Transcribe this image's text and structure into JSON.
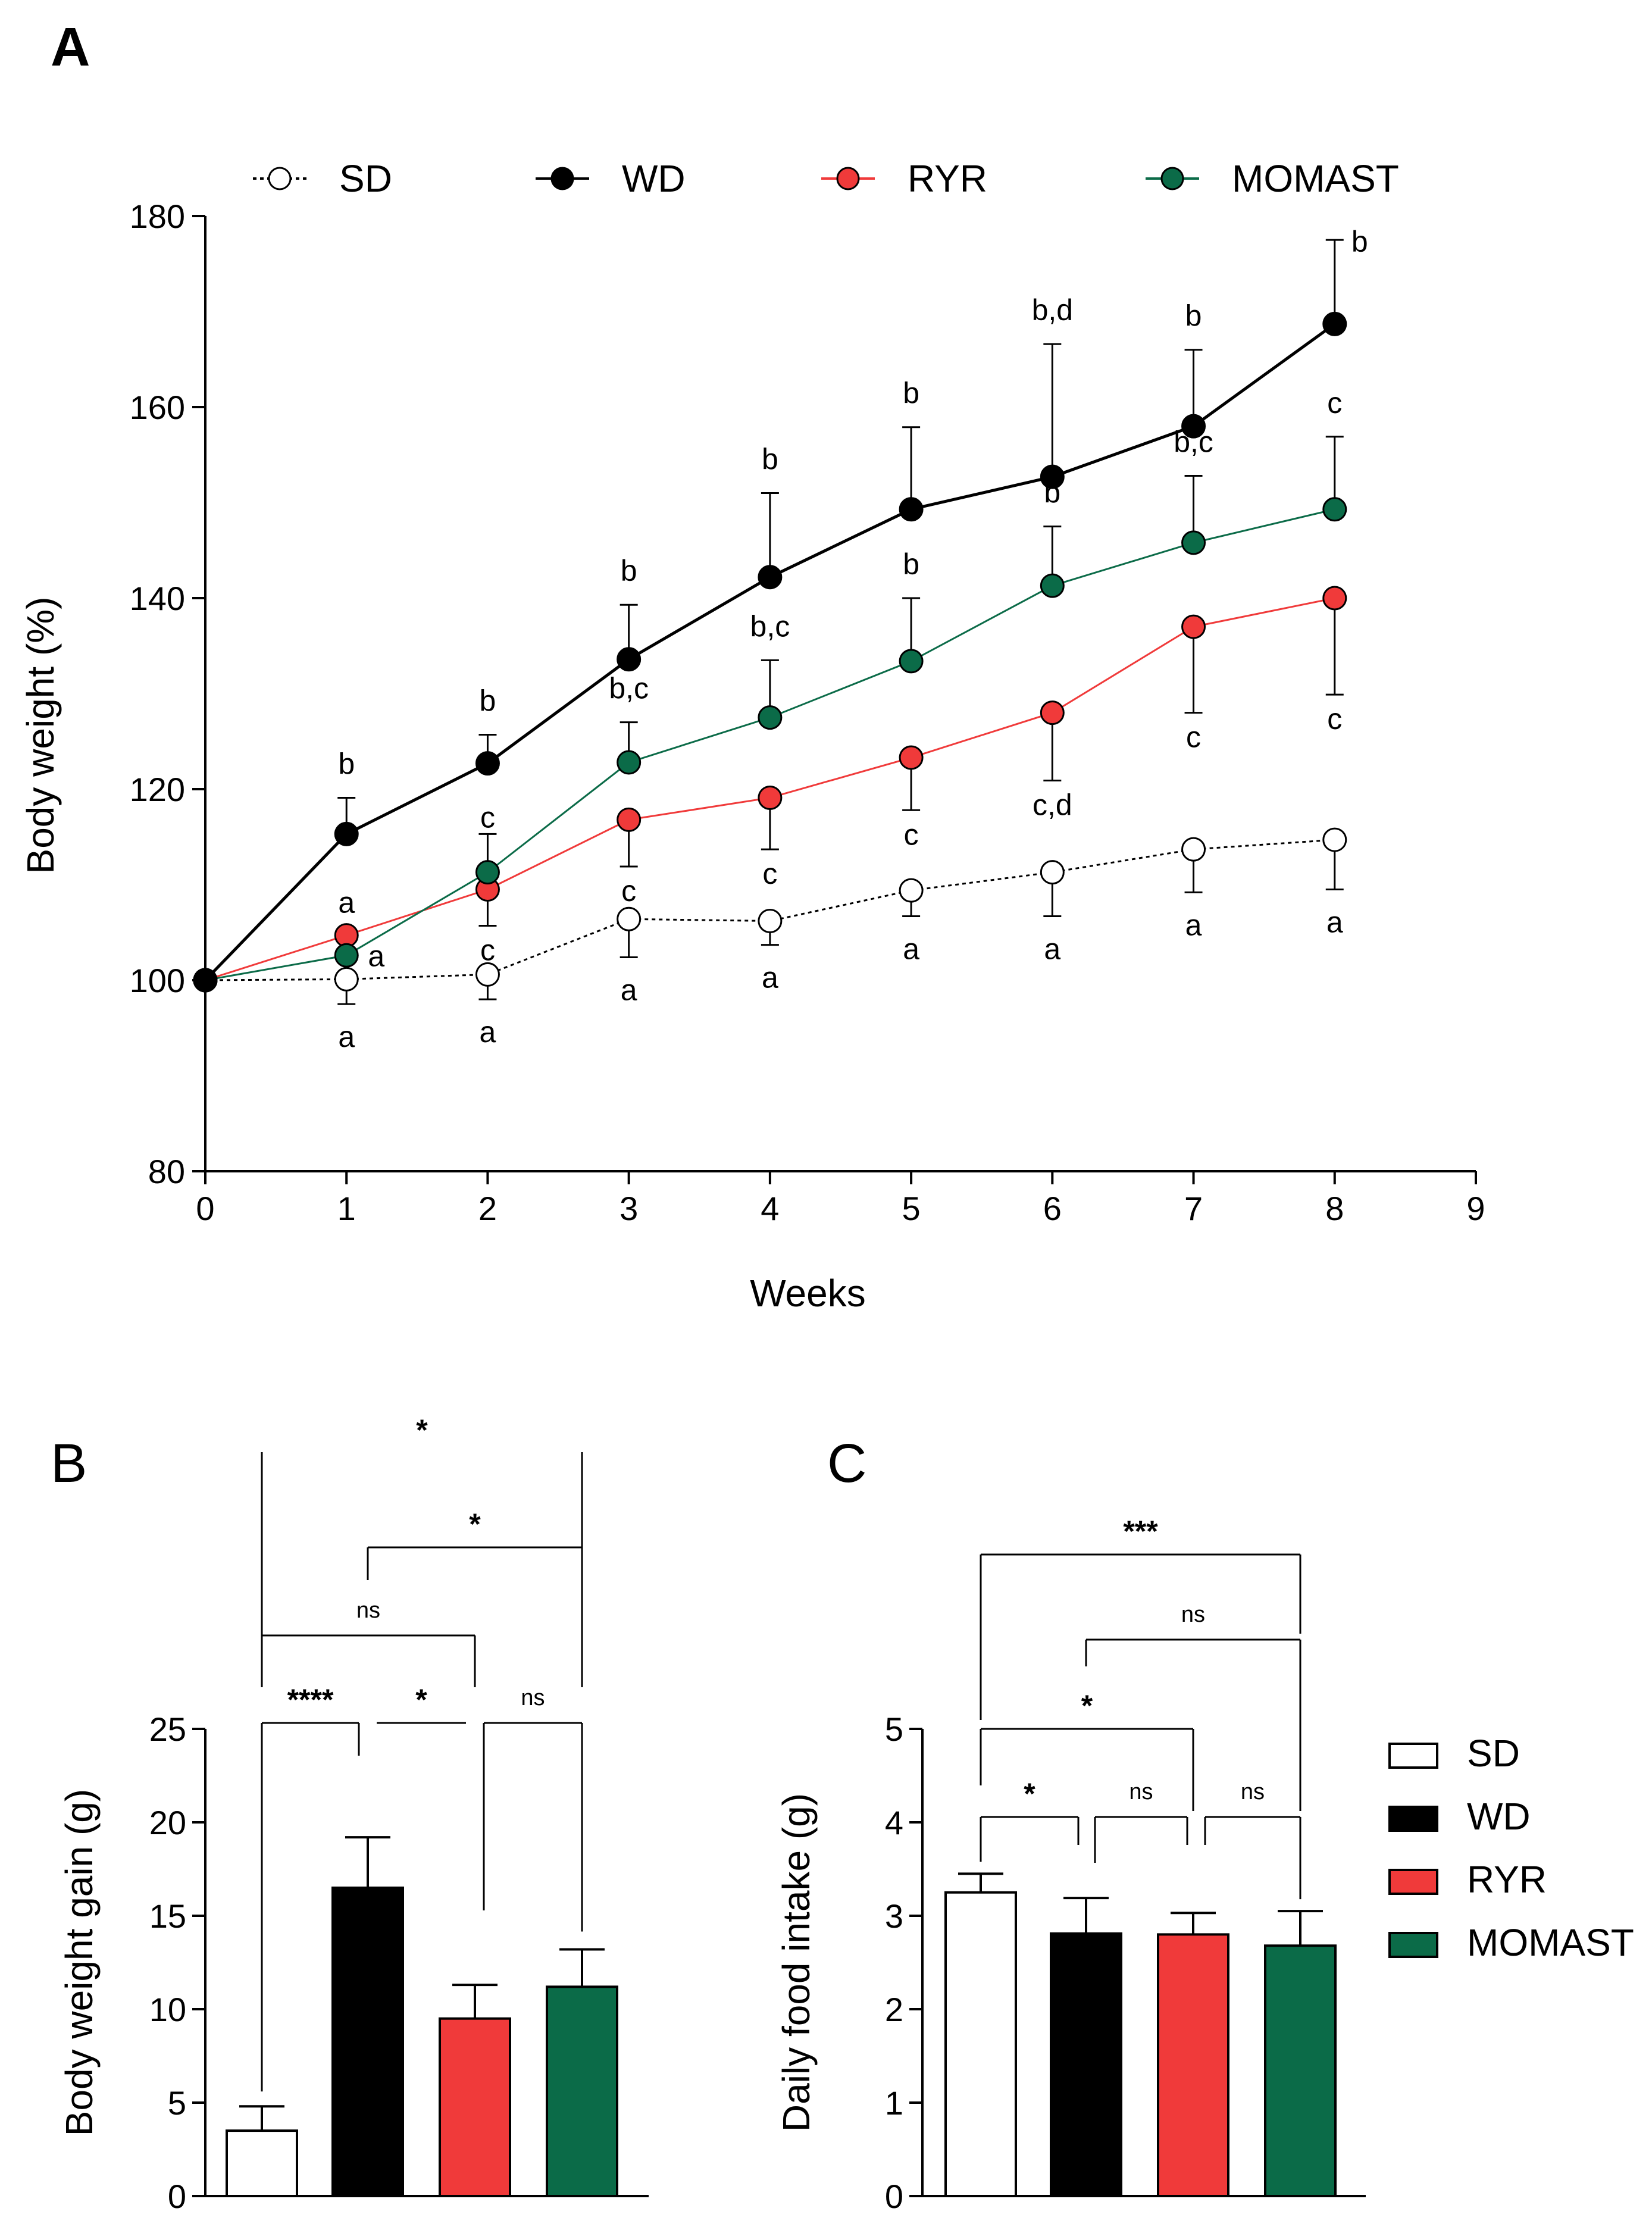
{
  "colors": {
    "SD": "#ffffff",
    "WD": "#000000",
    "RYR": "#f03a3a",
    "MOMAST": "#0b6b48",
    "axis": "#000000"
  },
  "chart_data": [
    {
      "panel": "A",
      "type": "line",
      "xlabel": "Weeks",
      "ylabel": "Body weight (%)",
      "xlim": [
        0,
        9
      ],
      "ylim": [
        80,
        180
      ],
      "xticks": [
        "0",
        "1",
        "2",
        "3",
        "4",
        "5",
        "6",
        "7",
        "8",
        "9"
      ],
      "yticks": [
        "80",
        "100",
        "120",
        "140",
        "160",
        "180"
      ],
      "legend": [
        "SD",
        "WD",
        "RYR",
        "MOMAST"
      ],
      "legend_position": "top",
      "x": [
        0,
        1,
        2,
        3,
        4,
        5,
        6,
        7,
        8
      ],
      "series": [
        {
          "name": "SD",
          "style": "dotted-open",
          "values": [
            100,
            100.1,
            100.6,
            106.4,
            106.2,
            109.4,
            111.3,
            113.7,
            114.7
          ],
          "err": [
            0,
            2.6,
            2.6,
            4,
            2.5,
            2.7,
            4.6,
            4.5,
            5.2
          ],
          "err_dir": "down",
          "labels": [
            "",
            "a",
            "a",
            "a",
            "a",
            "a",
            "a",
            "a",
            "a"
          ],
          "label_pos": "below"
        },
        {
          "name": "WD",
          "style": "solid",
          "values": [
            100,
            115.3,
            122.7,
            133.6,
            142.2,
            149.3,
            152.7,
            158,
            168.7
          ],
          "err": [
            0,
            3.8,
            3,
            5.7,
            8.8,
            8.6,
            13.9,
            8,
            8.8
          ],
          "err_dir": "up",
          "labels": [
            "",
            "b",
            "b",
            "b",
            "b",
            "b",
            "b,d",
            "b",
            "b"
          ],
          "label_pos": "above"
        },
        {
          "name": "RYR",
          "style": "solid",
          "values": [
            100,
            104.7,
            109.5,
            116.8,
            119.1,
            123.3,
            128,
            137,
            140
          ],
          "err": [
            0,
            0,
            3.8,
            4.9,
            5.4,
            5.5,
            7.1,
            9,
            10.1
          ],
          "err_dir": "down",
          "labels": [
            "",
            "a",
            "c",
            "c",
            "c",
            "c",
            "c,d",
            "c",
            "c"
          ],
          "label_pos": "mixed"
        },
        {
          "name": "MOMAST",
          "style": "solid",
          "values": [
            100,
            102.6,
            111.3,
            122.8,
            127.5,
            133.4,
            141.3,
            145.8,
            149.3
          ],
          "err": [
            0,
            0,
            4,
            4.2,
            6,
            6.6,
            6.2,
            7,
            7.6
          ],
          "err_dir": "up",
          "labels": [
            "",
            "a",
            "c",
            "b,c",
            "b,c",
            "b",
            "b",
            "b,c",
            "c"
          ],
          "label_pos": "mixed"
        }
      ]
    },
    {
      "panel": "B",
      "type": "bar",
      "ylabel": "Body weight gain (g)",
      "ylim": [
        0,
        25
      ],
      "yticks": [
        "0",
        "5",
        "10",
        "15",
        "20",
        "25"
      ],
      "categories": [
        "SD",
        "WD",
        "RYR",
        "MOMAST"
      ],
      "values": [
        3.5,
        16.5,
        9.5,
        11.2
      ],
      "err": [
        1.3,
        2.7,
        1.8,
        2
      ],
      "comparisons": [
        {
          "pair": [
            "SD",
            "WD"
          ],
          "label": "****"
        },
        {
          "pair": [
            "WD",
            "RYR"
          ],
          "label": "*"
        },
        {
          "pair": [
            "RYR",
            "MOMAST"
          ],
          "label": "ns"
        },
        {
          "pair": [
            "SD",
            "RYR"
          ],
          "label": "ns"
        },
        {
          "pair": [
            "WD",
            "MOMAST"
          ],
          "label": "*"
        },
        {
          "pair": [
            "SD",
            "MOMAST"
          ],
          "label": "*"
        }
      ]
    },
    {
      "panel": "C",
      "type": "bar",
      "ylabel": "Daily food intake (g)",
      "ylim": [
        0,
        5
      ],
      "yticks": [
        "0",
        "1",
        "2",
        "3",
        "4",
        "5"
      ],
      "categories": [
        "SD",
        "WD",
        "RYR",
        "MOMAST"
      ],
      "values": [
        3.25,
        2.81,
        2.8,
        2.68
      ],
      "err": [
        0.2,
        0.38,
        0.23,
        0.37
      ],
      "comparisons": [
        {
          "pair": [
            "SD",
            "WD"
          ],
          "label": "*"
        },
        {
          "pair": [
            "WD",
            "RYR"
          ],
          "label": "ns"
        },
        {
          "pair": [
            "RYR",
            "MOMAST"
          ],
          "label": "ns"
        },
        {
          "pair": [
            "SD",
            "RYR"
          ],
          "label": "*"
        },
        {
          "pair": [
            "WD",
            "MOMAST"
          ],
          "label": "ns"
        },
        {
          "pair": [
            "SD",
            "MOMAST"
          ],
          "label": "***"
        }
      ]
    }
  ],
  "bar_legend": [
    "SD",
    "WD",
    "RYR",
    "MOMAST"
  ]
}
